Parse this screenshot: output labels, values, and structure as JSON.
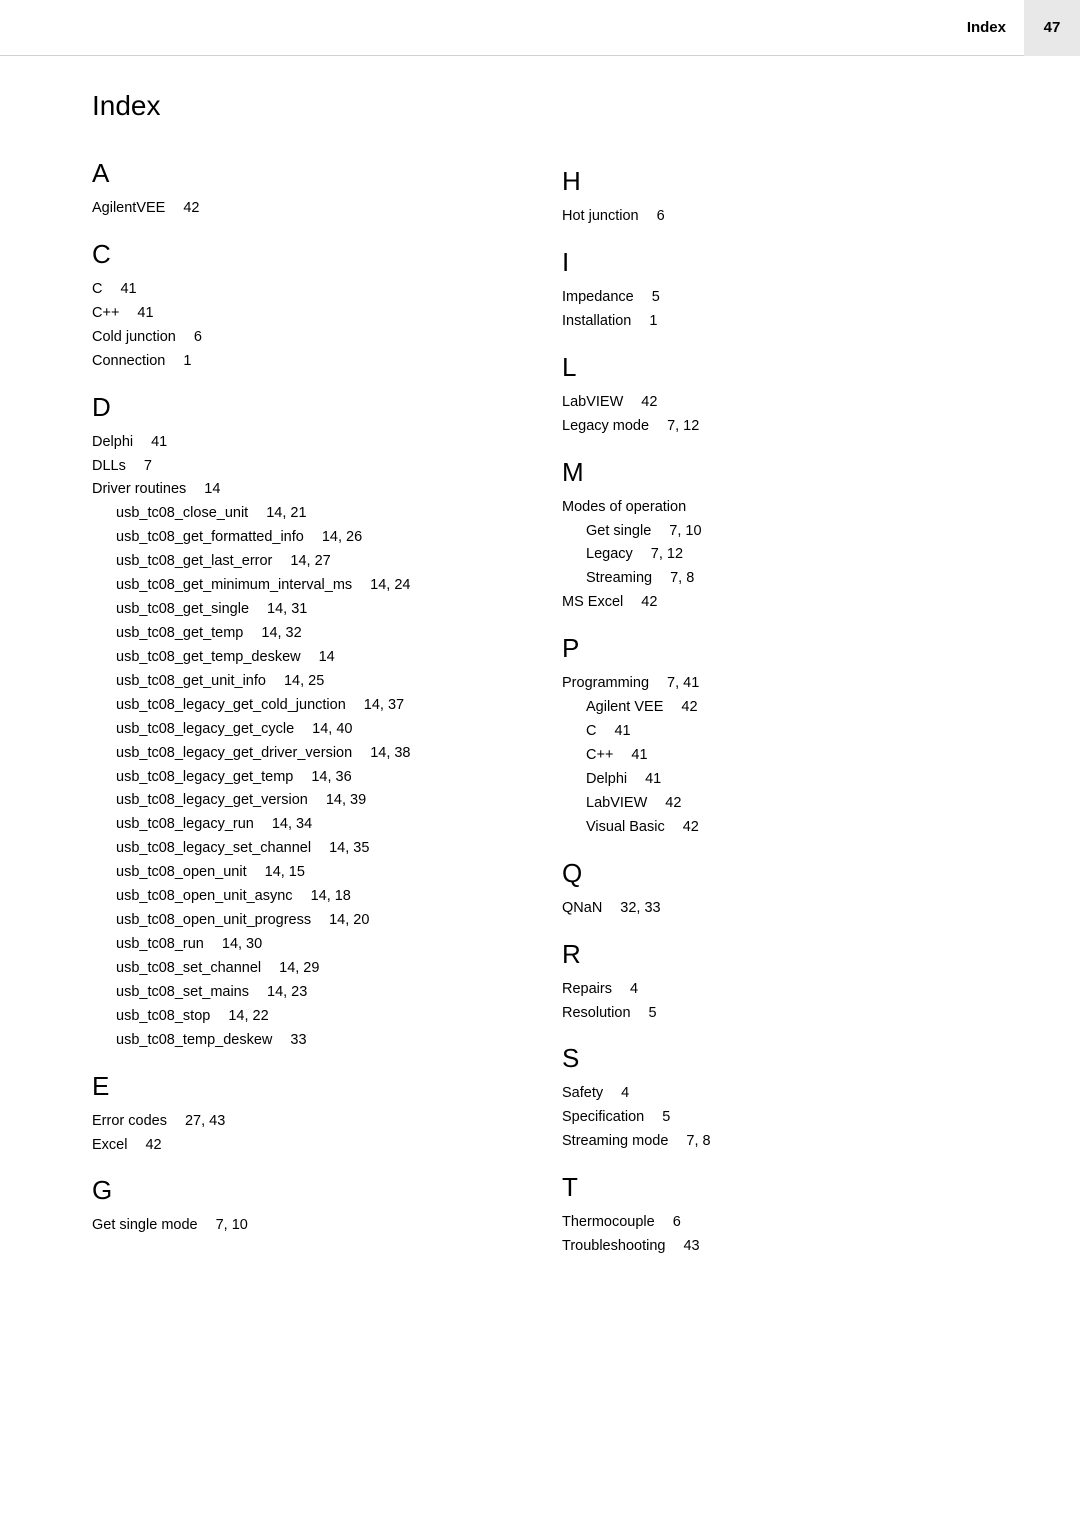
{
  "header": {
    "label": "Index",
    "page_number": "47"
  },
  "title": "Index",
  "left": {
    "A": {
      "letter": "A",
      "entries": [
        {
          "term": "AgilentVEE",
          "pages": "42"
        }
      ]
    },
    "C": {
      "letter": "C",
      "entries": [
        {
          "term": "C",
          "pages": "41"
        },
        {
          "term": "C++",
          "pages": "41"
        },
        {
          "term": "Cold junction",
          "pages": "6"
        },
        {
          "term": "Connection",
          "pages": "1"
        }
      ]
    },
    "D": {
      "letter": "D",
      "entries": [
        {
          "term": "Delphi",
          "pages": "41"
        },
        {
          "term": "DLLs",
          "pages": "7"
        },
        {
          "term": "Driver routines",
          "pages": "14"
        }
      ],
      "driver_sub": [
        {
          "term": "usb_tc08_close_unit",
          "pages": "14, 21"
        },
        {
          "term": "usb_tc08_get_formatted_info",
          "pages": "14, 26"
        },
        {
          "term": "usb_tc08_get_last_error",
          "pages": "14, 27"
        },
        {
          "term": "usb_tc08_get_minimum_interval_ms",
          "pages": "14, 24"
        },
        {
          "term": "usb_tc08_get_single",
          "pages": "14, 31"
        },
        {
          "term": "usb_tc08_get_temp",
          "pages": "14, 32"
        },
        {
          "term": "usb_tc08_get_temp_deskew",
          "pages": "14"
        },
        {
          "term": "usb_tc08_get_unit_info",
          "pages": "14, 25"
        },
        {
          "term": "usb_tc08_legacy_get_cold_junction",
          "pages": "14, 37"
        },
        {
          "term": "usb_tc08_legacy_get_cycle",
          "pages": "14, 40"
        },
        {
          "term": "usb_tc08_legacy_get_driver_version",
          "pages": "14, 38"
        },
        {
          "term": "usb_tc08_legacy_get_temp",
          "pages": "14, 36"
        },
        {
          "term": "usb_tc08_legacy_get_version",
          "pages": "14, 39"
        },
        {
          "term": "usb_tc08_legacy_run",
          "pages": "14, 34"
        },
        {
          "term": "usb_tc08_legacy_set_channel",
          "pages": "14, 35"
        },
        {
          "term": "usb_tc08_open_unit",
          "pages": "14, 15"
        },
        {
          "term": "usb_tc08_open_unit_async",
          "pages": "14, 18"
        },
        {
          "term": "usb_tc08_open_unit_progress",
          "pages": "14, 20"
        },
        {
          "term": "usb_tc08_run",
          "pages": "14, 30"
        },
        {
          "term": "usb_tc08_set_channel",
          "pages": "14, 29"
        },
        {
          "term": "usb_tc08_set_mains",
          "pages": "14, 23"
        },
        {
          "term": "usb_tc08_stop",
          "pages": "14, 22"
        },
        {
          "term": "usb_tc08_temp_deskew",
          "pages": "33"
        }
      ]
    },
    "E": {
      "letter": "E",
      "entries": [
        {
          "term": "Error codes",
          "pages": "27, 43"
        },
        {
          "term": "Excel",
          "pages": "42"
        }
      ]
    },
    "G": {
      "letter": "G",
      "entries": [
        {
          "term": "Get single mode",
          "pages": "7, 10"
        }
      ]
    }
  },
  "right": {
    "H": {
      "letter": "H",
      "entries": [
        {
          "term": "Hot junction",
          "pages": "6"
        }
      ]
    },
    "I": {
      "letter": "I",
      "entries": [
        {
          "term": "Impedance",
          "pages": "5"
        },
        {
          "term": "Installation",
          "pages": "1"
        }
      ]
    },
    "L": {
      "letter": "L",
      "entries": [
        {
          "term": "LabVIEW",
          "pages": "42"
        },
        {
          "term": "Legacy mode",
          "pages": "7, 12"
        }
      ]
    },
    "M": {
      "letter": "M",
      "modes_label": "Modes of operation",
      "modes_sub": [
        {
          "term": "Get single",
          "pages": "7, 10"
        },
        {
          "term": "Legacy",
          "pages": "7, 12"
        },
        {
          "term": "Streaming",
          "pages": "7, 8"
        }
      ],
      "entries_after": [
        {
          "term": "MS Excel",
          "pages": "42"
        }
      ]
    },
    "P": {
      "letter": "P",
      "prog_label": "Programming",
      "prog_pages": "7, 41",
      "prog_sub": [
        {
          "term": "Agilent VEE",
          "pages": "42"
        },
        {
          "term": "C",
          "pages": "41"
        },
        {
          "term": "C++",
          "pages": "41"
        },
        {
          "term": "Delphi",
          "pages": "41"
        },
        {
          "term": "LabVIEW",
          "pages": "42"
        },
        {
          "term": "Visual Basic",
          "pages": "42"
        }
      ]
    },
    "Q": {
      "letter": "Q",
      "entries": [
        {
          "term": "QNaN",
          "pages": "32, 33"
        }
      ]
    },
    "R": {
      "letter": "R",
      "entries": [
        {
          "term": "Repairs",
          "pages": "4"
        },
        {
          "term": "Resolution",
          "pages": "5"
        }
      ]
    },
    "S": {
      "letter": "S",
      "entries": [
        {
          "term": "Safety",
          "pages": "4"
        },
        {
          "term": "Specification",
          "pages": "5"
        },
        {
          "term": "Streaming mode",
          "pages": "7, 8"
        }
      ]
    },
    "T": {
      "letter": "T",
      "entries": [
        {
          "term": "Thermocouple",
          "pages": "6"
        },
        {
          "term": "Troubleshooting",
          "pages": "43"
        }
      ]
    }
  }
}
